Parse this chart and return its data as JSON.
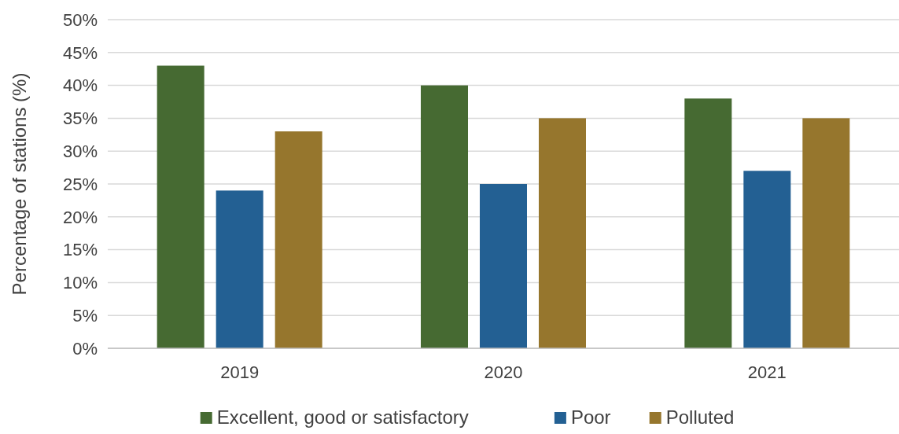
{
  "chart_data": {
    "type": "bar",
    "ylabel": "Percentage of stations (%)",
    "categories": [
      "2019",
      "2020",
      "2021"
    ],
    "series": [
      {
        "name": "Excellent, good or satisfactory",
        "color": "#466a32",
        "values": [
          43,
          40,
          38
        ]
      },
      {
        "name": "Poor",
        "color": "#236093",
        "values": [
          24,
          25,
          27
        ]
      },
      {
        "name": "Polluted",
        "color": "#96762d",
        "values": [
          33,
          35,
          35
        ]
      }
    ],
    "ylim": [
      0,
      50
    ],
    "yticks": [
      {
        "value": 0,
        "label": "0%"
      },
      {
        "value": 5,
        "label": "5%"
      },
      {
        "value": 10,
        "label": "10%"
      },
      {
        "value": 15,
        "label": "15%"
      },
      {
        "value": 20,
        "label": "20%"
      },
      {
        "value": 25,
        "label": "25%"
      },
      {
        "value": 30,
        "label": "30%"
      },
      {
        "value": 35,
        "label": "35%"
      },
      {
        "value": 40,
        "label": "40%"
      },
      {
        "value": 45,
        "label": "45%"
      },
      {
        "value": 50,
        "label": "50%"
      }
    ],
    "grid": "y",
    "legend": "bottom"
  }
}
